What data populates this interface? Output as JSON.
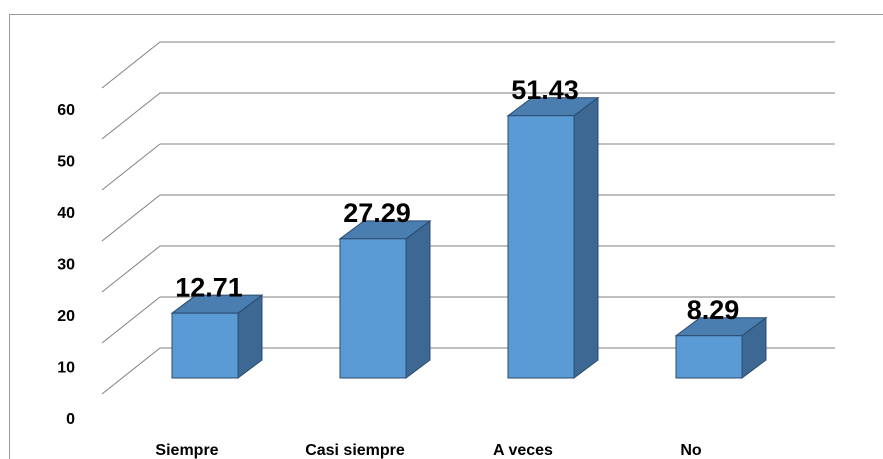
{
  "chart_data": {
    "type": "bar3d",
    "categories": [
      "Siempre",
      "Casi siempre",
      "A  veces",
      "No"
    ],
    "values": [
      12.71,
      27.29,
      51.43,
      8.29
    ],
    "color": "#5b9bd5",
    "ylim": [
      0,
      60
    ],
    "yticks": [
      0,
      10,
      20,
      30,
      40,
      50,
      60
    ],
    "grid": true
  }
}
